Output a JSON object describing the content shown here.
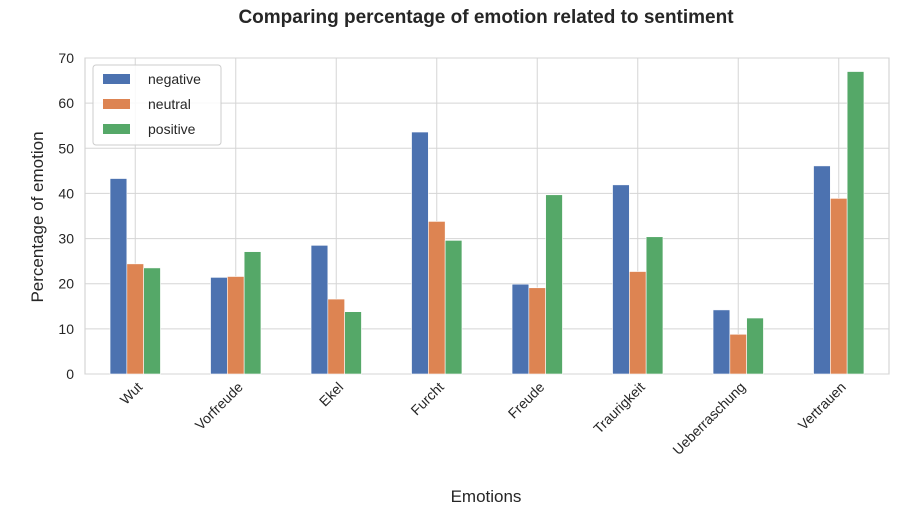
{
  "chart_data": {
    "type": "bar",
    "title": "Comparing percentage of emotion related to sentiment",
    "xlabel": "Emotions",
    "ylabel": "Percentage of emotion",
    "categories": [
      "Wut",
      "Vorfreude",
      "Ekel",
      "Furcht",
      "Freude",
      "Traurigkeit",
      "Ueberraschung",
      "Vertrauen"
    ],
    "series": [
      {
        "name": "negative",
        "color": "#4c72b0",
        "values": [
          43.3,
          21.4,
          28.5,
          53.6,
          19.9,
          41.9,
          14.2,
          46.1
        ]
      },
      {
        "name": "neutral",
        "color": "#dd8452",
        "values": [
          24.4,
          21.6,
          16.6,
          33.8,
          19.1,
          22.7,
          8.8,
          38.9
        ]
      },
      {
        "name": "positive",
        "color": "#55a868",
        "values": [
          23.5,
          27.1,
          13.8,
          29.6,
          39.7,
          30.4,
          12.4,
          67.0
        ]
      }
    ],
    "ylim": [
      0,
      70
    ],
    "yticks": [
      0,
      10,
      20,
      30,
      40,
      50,
      60,
      70
    ],
    "grid": true,
    "legend": "top-left"
  }
}
